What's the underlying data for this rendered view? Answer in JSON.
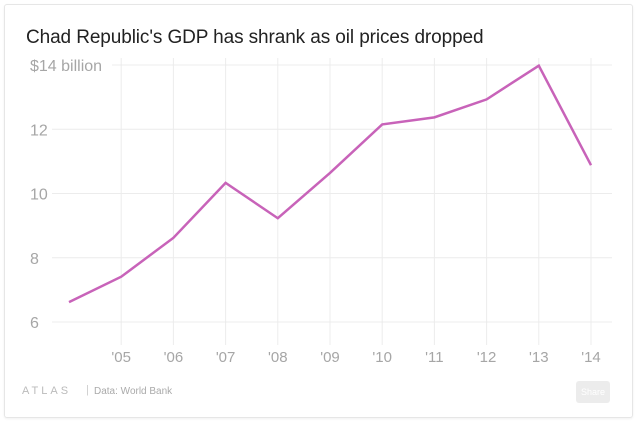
{
  "title": "Chad Republic's GDP has shrank as oil prices dropped",
  "footer": {
    "logo": "ATLAS",
    "separator": "|",
    "source": "Data: World Bank",
    "share_label": "Share"
  },
  "colors": {
    "line": "#c863b9",
    "grid": "#ececec",
    "tick_text": "#a6a6a6",
    "title_text": "#222222"
  },
  "chart_data": {
    "type": "line",
    "title": "Chad Republic's GDP has shrank as oil prices dropped",
    "xlabel": "",
    "ylabel": "$ billion",
    "x": [
      2004,
      2005,
      2006,
      2007,
      2008,
      2009,
      2010,
      2011,
      2012,
      2013,
      2014
    ],
    "x_tick_values": [
      2005,
      2006,
      2007,
      2008,
      2009,
      2010,
      2011,
      2012,
      2013,
      2014
    ],
    "x_tick_labels": [
      "'05",
      "'06",
      "'07",
      "'08",
      "'09",
      "'10",
      "'11",
      "'12",
      "'13",
      "'14"
    ],
    "y_tick_values": [
      6,
      8,
      10,
      12,
      14
    ],
    "y_tick_labels": [
      "6",
      "8",
      "10",
      "12",
      "$14 billion"
    ],
    "ylim": [
      6,
      14
    ],
    "xlim": [
      2004,
      2014
    ],
    "grid": true,
    "legend": "none",
    "series": [
      {
        "name": "GDP",
        "values": [
          6.62,
          7.41,
          8.62,
          10.33,
          9.23,
          10.64,
          12.15,
          12.37,
          12.93,
          13.98,
          10.88
        ]
      }
    ],
    "source": "World Bank"
  }
}
